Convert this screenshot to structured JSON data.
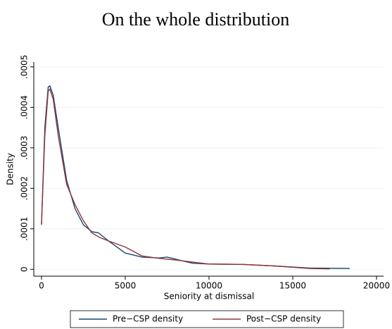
{
  "chart_data": {
    "type": "line",
    "title": "On the whole distribution",
    "x_label": "Seniority at dismissal",
    "y_label": "Density",
    "xlim": [
      -460,
      20420
    ],
    "ylim": [
      -1.7e-05,
      0.000512
    ],
    "xticks": [
      0,
      5000,
      10000,
      15000,
      20000
    ],
    "yticks": [
      0,
      {
        "value": 0.0001,
        "label": ".0001"
      },
      {
        "value": 0.0002,
        "label": ".0002"
      },
      {
        "value": 0.0003,
        "label": ".0003"
      },
      {
        "value": 0.0004,
        "label": ".0004"
      },
      {
        "value": 0.0005,
        "label": ".0005"
      }
    ],
    "grid": true,
    "legend": "bottom",
    "series": [
      {
        "name": "Pre−CSP density",
        "color": "#1a476f",
        "x": [
          0,
          200,
          400,
          500,
          700,
          1000,
          1500,
          2000,
          2500,
          3000,
          3400,
          4000,
          5000,
          6000,
          7000,
          7500,
          8000,
          9000,
          10000,
          12000,
          14000,
          16000,
          18400
        ],
        "values": [
          0.00011,
          0.00035,
          0.00045,
          0.000453,
          0.00043,
          0.00035,
          0.00022,
          0.00015,
          0.00011,
          9.3e-05,
          9e-05,
          7e-05,
          4e-05,
          3e-05,
          2.8e-05,
          3e-05,
          2.5e-05,
          1.5e-05,
          1.3e-05,
          1.2e-05,
          8e-06,
          3e-06,
          2e-06
        ]
      },
      {
        "name": "Post−CSP density",
        "color": "#90353b",
        "x": [
          0,
          200,
          400,
          500,
          700,
          1000,
          1500,
          2000,
          2500,
          3000,
          3500,
          4000,
          5000,
          6000,
          7000,
          8000,
          9000,
          10000,
          12000,
          14000,
          16000,
          17200
        ],
        "values": [
          0.00011,
          0.00033,
          0.00044,
          0.000445,
          0.00042,
          0.00033,
          0.00021,
          0.00016,
          0.00012,
          9e-05,
          7.8e-05,
          7e-05,
          5.5e-05,
          3.3e-05,
          2.7e-05,
          2.3e-05,
          1.8e-05,
          1.3e-05,
          1.2e-05,
          8e-06,
          2e-06,
          1e-06
        ]
      }
    ]
  }
}
